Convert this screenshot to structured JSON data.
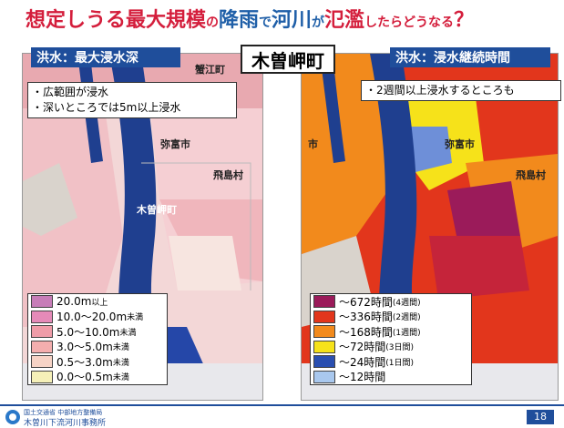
{
  "title": {
    "p1": "想定しうる最大規模",
    "p2": "の",
    "p3": "降雨",
    "p4": "で",
    "p5": "河川",
    "p6": "が",
    "p7": "氾濫",
    "p8": "したらどうなる",
    "p9": "？"
  },
  "left_panel": {
    "label": "洪水：最大浸水深",
    "notes": [
      "・広範囲が浸水",
      "・深いところでは5m以上浸水"
    ],
    "places": {
      "top": "蟹江町",
      "city1": "弥富市",
      "city2": "飛島村",
      "town": "木曽岬町"
    },
    "legend": [
      {
        "main": "20.0m",
        "suffix": "以上",
        "color": "#c77db8"
      },
      {
        "main": "10.0～20.0m",
        "suffix": "未満",
        "color": "#e58ab8"
      },
      {
        "main": "5.0～10.0m",
        "suffix": "未満",
        "color": "#ef9ca8"
      },
      {
        "main": "3.0～5.0m",
        "suffix": "未満",
        "color": "#f4aeae"
      },
      {
        "main": "0.5～3.0m",
        "suffix": "未満",
        "color": "#f6d3c6"
      },
      {
        "main": "0.0～0.5m",
        "suffix": "未満",
        "color": "#f5f0b8"
      }
    ]
  },
  "center_label": "木曽岬町",
  "right_panel": {
    "label": "洪水：浸水継続時間",
    "note": "・2週間以上浸水するところも",
    "places": {
      "city1": "弥富市",
      "city2": "飛島村",
      "edge": "市"
    },
    "legend": [
      {
        "main": "～672時間",
        "suffix": "(4週間)",
        "color": "#9b1b5a"
      },
      {
        "main": "～336時間",
        "suffix": "(2週間)",
        "color": "#e2361c"
      },
      {
        "main": "～168時間",
        "suffix": "(1週間)",
        "color": "#f28a1c"
      },
      {
        "main": "～72時間",
        "suffix": "(3日間)",
        "color": "#f6e21a"
      },
      {
        "main": "～24時間",
        "suffix": "(1日間)",
        "color": "#2a4fb0"
      },
      {
        "main": "～12時間",
        "suffix": "",
        "color": "#a9c8ee"
      }
    ]
  },
  "footer": {
    "org": "国土交通省 中部地方整備局",
    "office": "木曽川下流河川事務所",
    "page": "18"
  }
}
